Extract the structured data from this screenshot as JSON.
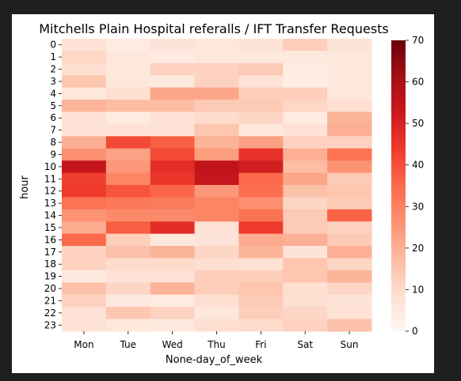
{
  "chart_data": {
    "type": "heatmap",
    "title": "Mitchells Plain Hospital referalls / IFT Transfer Requests",
    "xlabel": "None-day_of_week",
    "ylabel": "hour",
    "x_categories": [
      "Mon",
      "Tue",
      "Wed",
      "Thu",
      "Fri",
      "Sat",
      "Sun"
    ],
    "y_categories": [
      "0",
      "1",
      "2",
      "3",
      "4",
      "5",
      "6",
      "7",
      "8",
      "9",
      "10",
      "11",
      "12",
      "13",
      "14",
      "15",
      "16",
      "17",
      "18",
      "19",
      "20",
      "21",
      "22",
      "23"
    ],
    "values": [
      [
        8,
        4,
        7,
        6,
        7,
        13,
        7
      ],
      [
        11,
        6,
        4,
        6,
        5,
        5,
        6
      ],
      [
        9,
        6,
        12,
        12,
        14,
        4,
        6
      ],
      [
        15,
        6,
        5,
        12,
        8,
        3,
        6
      ],
      [
        6,
        9,
        22,
        22,
        13,
        13,
        6
      ],
      [
        19,
        17,
        17,
        14,
        14,
        11,
        9
      ],
      [
        8,
        4,
        8,
        10,
        11,
        4,
        19
      ],
      [
        8,
        8,
        8,
        15,
        6,
        8,
        20
      ],
      [
        20,
        41,
        37,
        19,
        23,
        12,
        12
      ],
      [
        27,
        23,
        41,
        24,
        46,
        20,
        33
      ],
      [
        54,
        25,
        47,
        55,
        51,
        17,
        26
      ],
      [
        43,
        29,
        45,
        54,
        35,
        22,
        14
      ],
      [
        44,
        39,
        36,
        25,
        34,
        16,
        15
      ],
      [
        33,
        32,
        31,
        29,
        27,
        11,
        14
      ],
      [
        26,
        28,
        28,
        29,
        33,
        14,
        36
      ],
      [
        21,
        37,
        47,
        8,
        44,
        14,
        12
      ],
      [
        35,
        13,
        6,
        7,
        21,
        20,
        14
      ],
      [
        12,
        16,
        19,
        11,
        19,
        7,
        20
      ],
      [
        12,
        10,
        10,
        9,
        8,
        15,
        11
      ],
      [
        5,
        8,
        8,
        13,
        13,
        15,
        19
      ],
      [
        16,
        11,
        19,
        13,
        15,
        9,
        11
      ],
      [
        12,
        5,
        4,
        9,
        14,
        9,
        7
      ],
      [
        8,
        15,
        12,
        6,
        13,
        11,
        8
      ],
      [
        8,
        6,
        5,
        9,
        10,
        12,
        16
      ]
    ],
    "colorbar": {
      "min": 0,
      "max": 70,
      "ticks": [
        0,
        10,
        20,
        30,
        40,
        50,
        60,
        70
      ],
      "colormap": "Reds"
    },
    "legend_placement": "right",
    "grid": false
  }
}
